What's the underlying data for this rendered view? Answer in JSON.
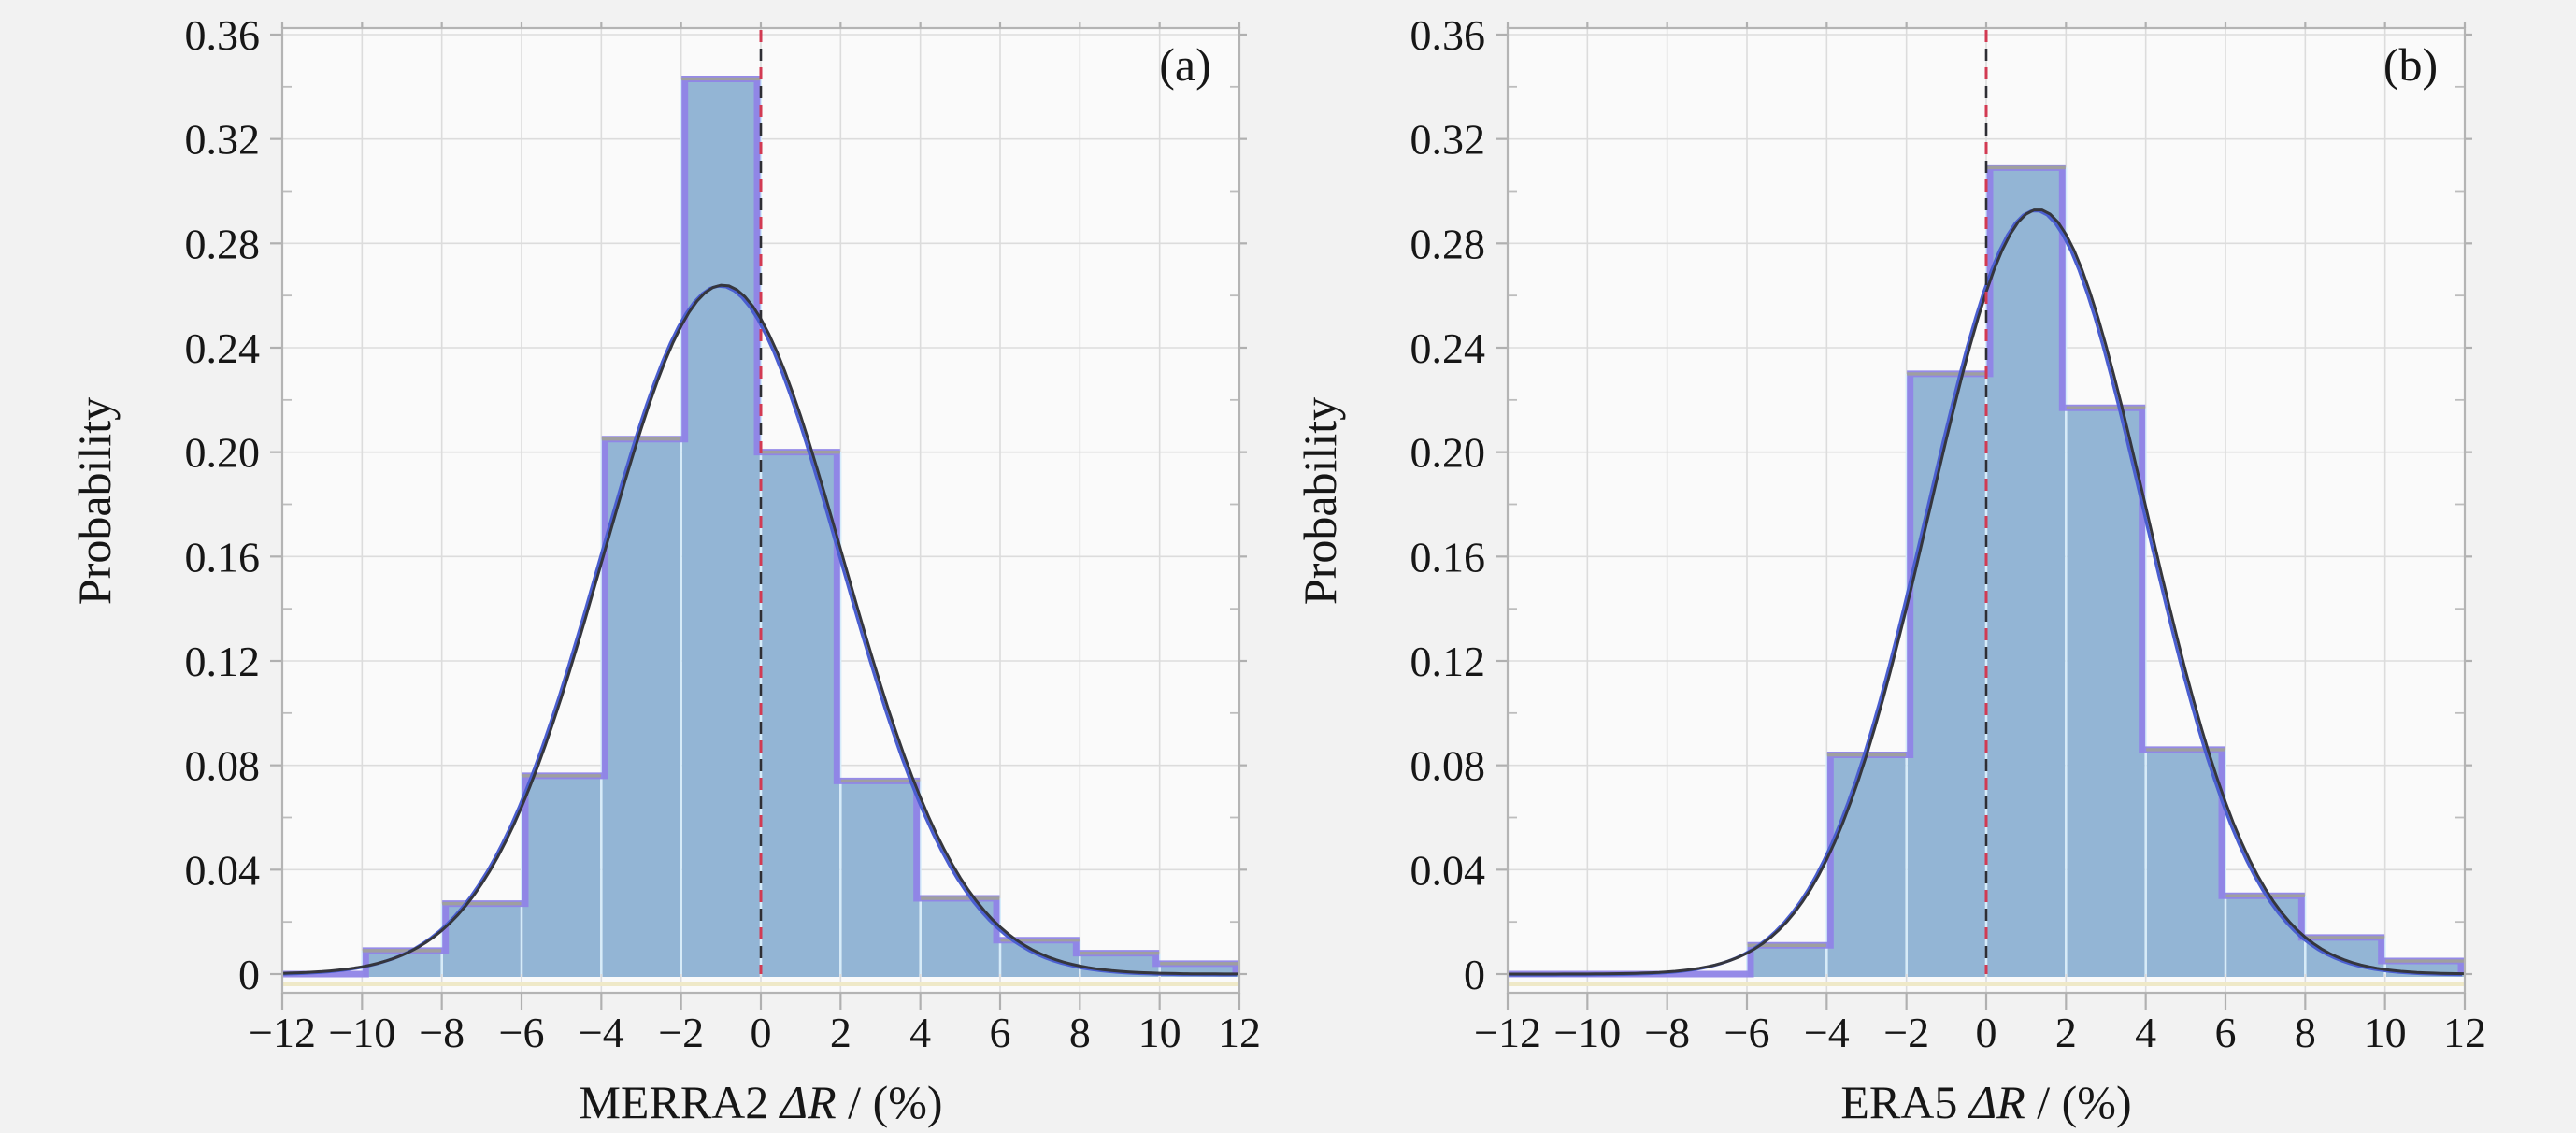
{
  "figure": {
    "background": "#f2f2f2",
    "plot_background": "#fafafa",
    "ylabel": "Probability"
  },
  "style": {
    "bar_fill": "#93b5d5",
    "bar_top_edge": "#9f9f9f",
    "bar_separator": "#d5ecfa",
    "purple_outline": "#8f84e7",
    "fit_curve_dark": "#35363d",
    "fit_curve_blue": "#4a5ed0",
    "ref_line_red": "#d23a52",
    "ref_line_dark": "#2e2e34",
    "frame": "#b4b4b4",
    "gridline": "#dcdcdc",
    "tick": "#b0b0b0",
    "minor_tick": "#bdbdbd",
    "baseline_accent": "#efe9c8",
    "text": "#161616"
  },
  "chart_data": [
    {
      "type": "bar",
      "panel_label": "(a)",
      "xlabel_parts": [
        "MERRA2 ",
        "ΔR",
        " / (%)"
      ],
      "ylabel": "Probability",
      "xlim": [
        -12,
        12
      ],
      "ylim": [
        0,
        0.36
      ],
      "grid": true,
      "bin_width": 2,
      "bin_starts": [
        -12,
        -10,
        -8,
        -6,
        -4,
        -2,
        0,
        2,
        4,
        6,
        8,
        10
      ],
      "values": [
        0,
        0.009,
        0.027,
        0.076,
        0.205,
        0.343,
        0.2,
        0.074,
        0.029,
        0.013,
        0.008,
        0.004
      ],
      "fit_curve": {
        "shape": "gaussian",
        "mu": -0.95,
        "sigma": 3.0,
        "peak": 0.264
      },
      "ref_line_x": 0,
      "x_ticks": [
        {
          "v": -12,
          "label": "−12"
        },
        {
          "v": -10,
          "label": "−10"
        },
        {
          "v": -8,
          "label": "−8"
        },
        {
          "v": -6,
          "label": "−6"
        },
        {
          "v": -4,
          "label": "−4"
        },
        {
          "v": -2,
          "label": "−2"
        },
        {
          "v": 0,
          "label": "0"
        },
        {
          "v": 2,
          "label": "2"
        },
        {
          "v": 4,
          "label": "4"
        },
        {
          "v": 6,
          "label": "6"
        },
        {
          "v": 8,
          "label": "8"
        },
        {
          "v": 10,
          "label": "10"
        },
        {
          "v": 12,
          "label": "12"
        }
      ],
      "y_ticks": [
        {
          "v": 0,
          "label": "0"
        },
        {
          "v": 0.04,
          "label": "0.04"
        },
        {
          "v": 0.08,
          "label": "0.08"
        },
        {
          "v": 0.12,
          "label": "0.12"
        },
        {
          "v": 0.16,
          "label": "0.16"
        },
        {
          "v": 0.2,
          "label": "0.20"
        },
        {
          "v": 0.24,
          "label": "0.24"
        },
        {
          "v": 0.28,
          "label": "0.28"
        },
        {
          "v": 0.32,
          "label": "0.32"
        },
        {
          "v": 0.36,
          "label": "0.36"
        }
      ],
      "y_minor_step": 0.02
    },
    {
      "type": "bar",
      "panel_label": "(b)",
      "xlabel_parts": [
        "ERA5 ",
        "ΔR",
        " / (%)"
      ],
      "ylabel": "Probability",
      "xlim": [
        -12,
        12
      ],
      "ylim": [
        0,
        0.36
      ],
      "grid": true,
      "bin_width": 2,
      "bin_starts": [
        -12,
        -10,
        -8,
        -6,
        -4,
        -2,
        0,
        2,
        4,
        6,
        8,
        10
      ],
      "values": [
        0,
        0,
        0,
        0.011,
        0.084,
        0.23,
        0.309,
        0.217,
        0.086,
        0.03,
        0.014,
        0.005
      ],
      "fit_curve": {
        "shape": "gaussian",
        "mu": 1.3,
        "sigma": 2.72,
        "peak": 0.293
      },
      "ref_line_x": 0,
      "x_ticks": [
        {
          "v": -12,
          "label": "−12"
        },
        {
          "v": -10,
          "label": "−10"
        },
        {
          "v": -8,
          "label": "−8"
        },
        {
          "v": -6,
          "label": "−6"
        },
        {
          "v": -4,
          "label": "−4"
        },
        {
          "v": -2,
          "label": "−2"
        },
        {
          "v": 0,
          "label": "0"
        },
        {
          "v": 2,
          "label": "2"
        },
        {
          "v": 4,
          "label": "4"
        },
        {
          "v": 6,
          "label": "6"
        },
        {
          "v": 8,
          "label": "8"
        },
        {
          "v": 10,
          "label": "10"
        },
        {
          "v": 12,
          "label": "12"
        }
      ],
      "y_ticks": [
        {
          "v": 0,
          "label": "0"
        },
        {
          "v": 0.04,
          "label": "0.04"
        },
        {
          "v": 0.08,
          "label": "0.08"
        },
        {
          "v": 0.12,
          "label": "0.12"
        },
        {
          "v": 0.16,
          "label": "0.16"
        },
        {
          "v": 0.2,
          "label": "0.20"
        },
        {
          "v": 0.24,
          "label": "0.24"
        },
        {
          "v": 0.28,
          "label": "0.28"
        },
        {
          "v": 0.32,
          "label": "0.32"
        },
        {
          "v": 0.36,
          "label": "0.36"
        }
      ],
      "y_minor_step": 0.02
    }
  ]
}
